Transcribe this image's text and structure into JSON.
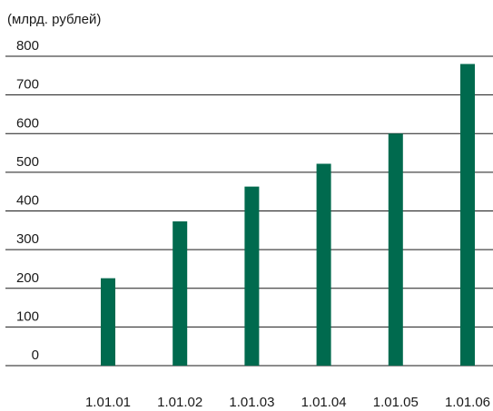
{
  "chart_data": {
    "type": "bar",
    "unit_label": "(млрд. рублей)",
    "title": "",
    "xlabel": "",
    "ylabel": "",
    "categories": [
      "1.01.01",
      "1.01.02",
      "1.01.03",
      "1.01.04",
      "1.01.05",
      "1.01.06"
    ],
    "values": [
      226,
      373,
      463,
      522,
      600,
      780
    ],
    "y_ticks": [
      "0",
      "100",
      "200",
      "300",
      "400",
      "500",
      "600",
      "700",
      "800"
    ],
    "ylim": [
      0,
      800
    ],
    "grid": "horizontal",
    "bar_color": "#006a4e",
    "grid_color": "#1a1a1a"
  }
}
